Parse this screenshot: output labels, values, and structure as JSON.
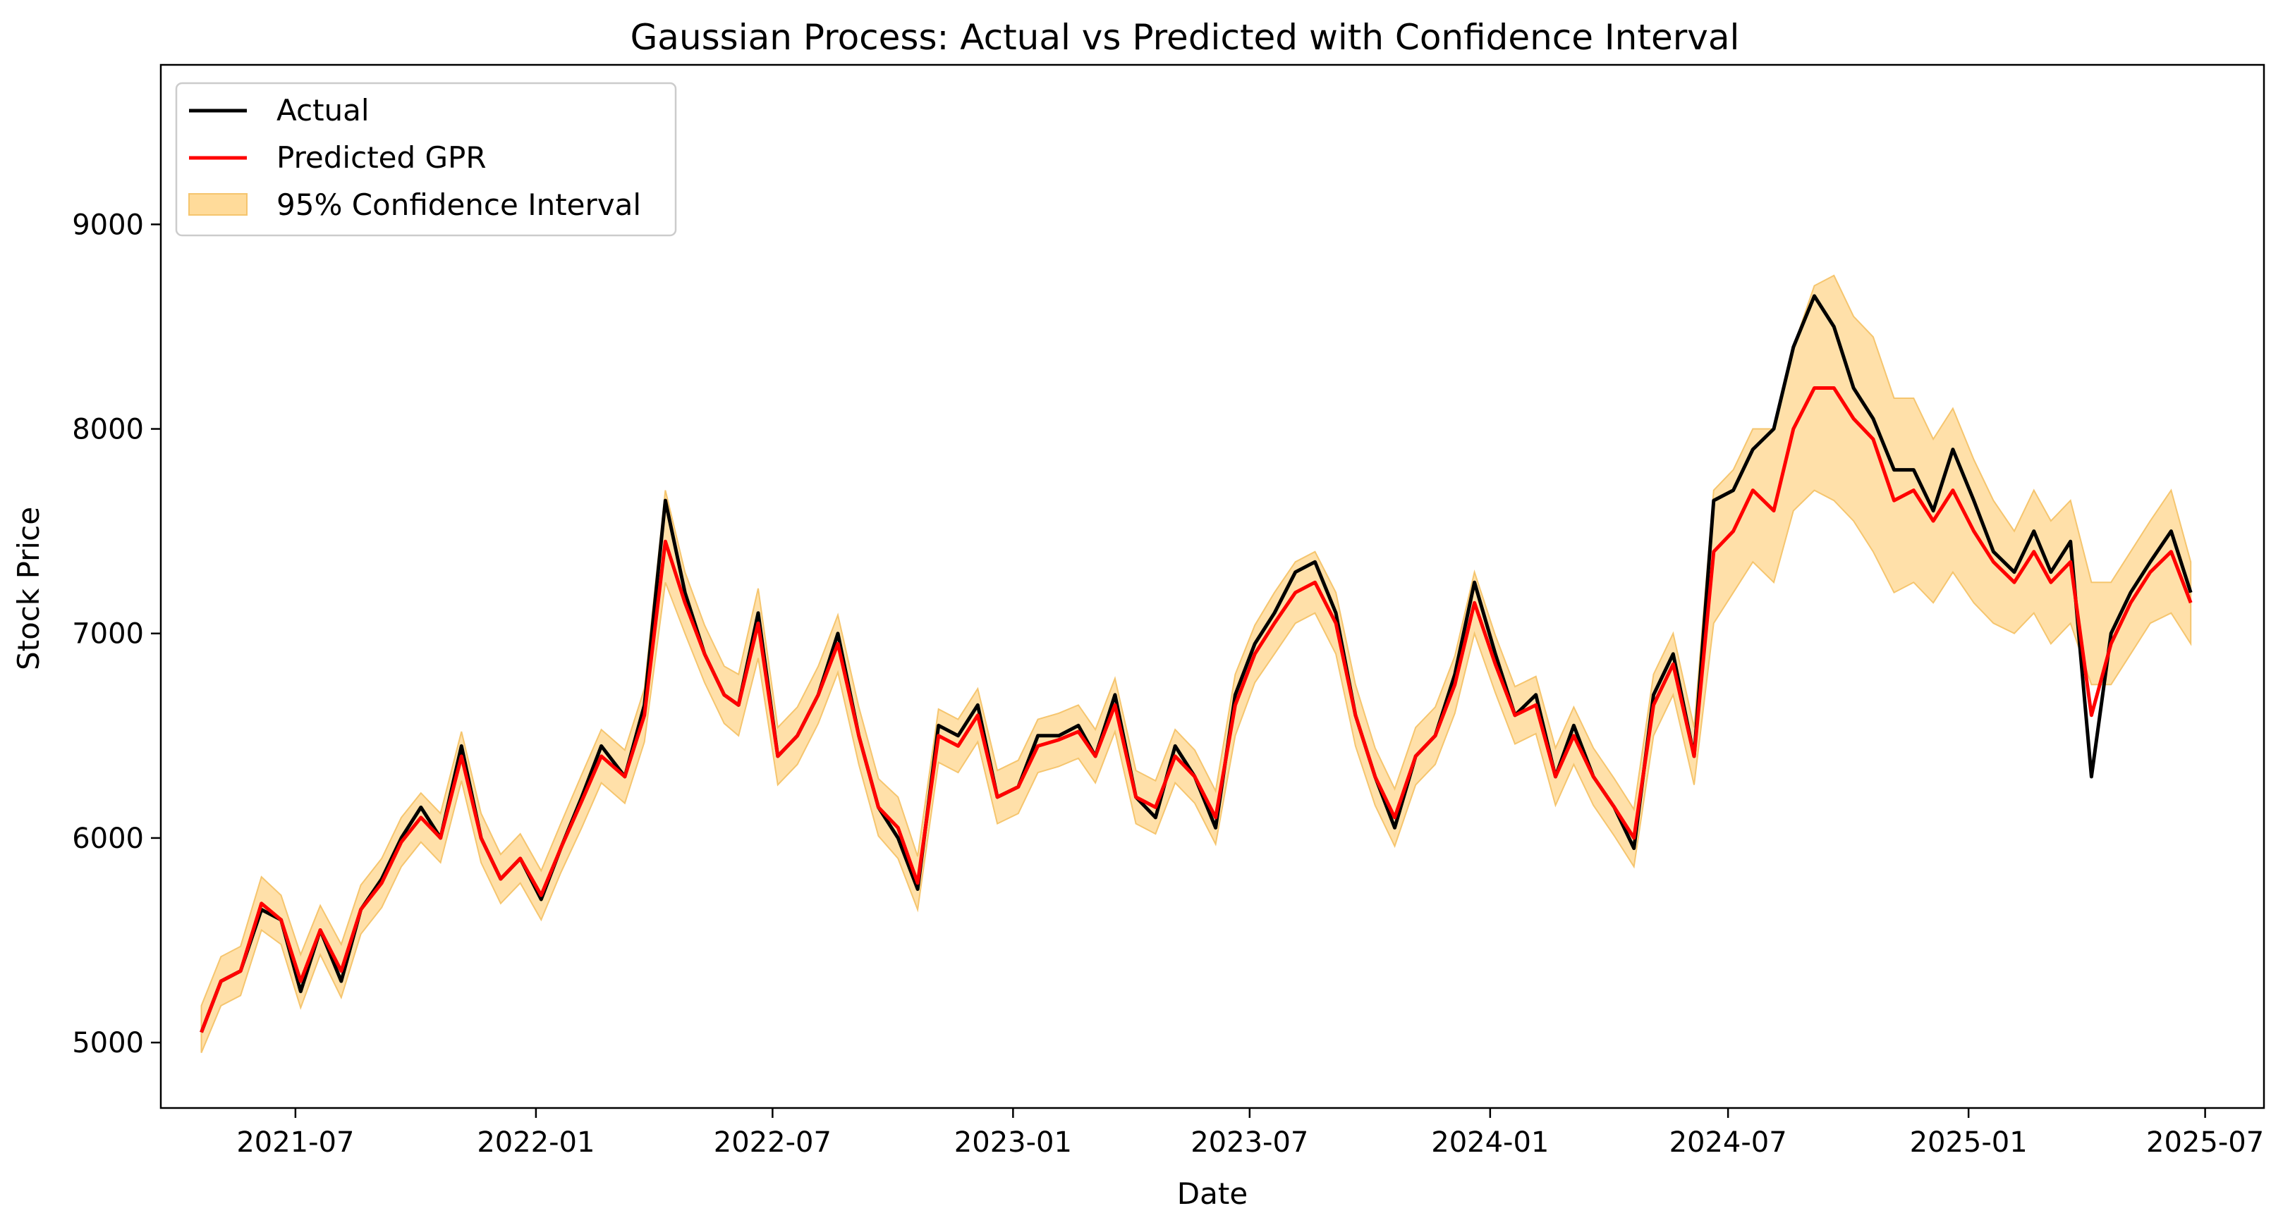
{
  "chart_data": {
    "type": "line",
    "title": "Gaussian Process: Actual vs Predicted with Confidence Interval",
    "xlabel": "Date",
    "ylabel": "Stock Price",
    "xlim": [
      "2021-03-20",
      "2025-08-15"
    ],
    "ylim": [
      4680,
      9780
    ],
    "x_ticks": [
      "2021-07",
      "2022-01",
      "2022-07",
      "2023-01",
      "2023-07",
      "2024-01",
      "2024-07",
      "2025-01",
      "2025-07"
    ],
    "y_ticks": [
      5000,
      6000,
      7000,
      8000,
      9000
    ],
    "grid": false,
    "legend_position": "top-left",
    "colors": {
      "actual": "#000000",
      "predicted": "#ff0000",
      "ci": "#ffdb9a",
      "ci_edge": "#f5c56e"
    },
    "x": [
      "2021-04-20",
      "2021-05-05",
      "2021-05-20",
      "2021-06-05",
      "2021-06-20",
      "2021-07-05",
      "2021-07-20",
      "2021-08-05",
      "2021-08-20",
      "2021-09-05",
      "2021-09-20",
      "2021-10-05",
      "2021-10-20",
      "2021-11-05",
      "2021-11-20",
      "2021-12-05",
      "2021-12-20",
      "2022-01-05",
      "2022-01-20",
      "2022-02-05",
      "2022-02-20",
      "2022-03-10",
      "2022-03-25",
      "2022-04-10",
      "2022-04-25",
      "2022-05-10",
      "2022-05-25",
      "2022-06-05",
      "2022-06-20",
      "2022-07-05",
      "2022-07-20",
      "2022-08-05",
      "2022-08-20",
      "2022-09-05",
      "2022-09-20",
      "2022-10-05",
      "2022-10-20",
      "2022-11-05",
      "2022-11-20",
      "2022-12-05",
      "2022-12-20",
      "2023-01-05",
      "2023-01-20",
      "2023-02-05",
      "2023-02-20",
      "2023-03-05",
      "2023-03-20",
      "2023-04-05",
      "2023-04-20",
      "2023-05-05",
      "2023-05-20",
      "2023-06-05",
      "2023-06-20",
      "2023-07-05",
      "2023-07-20",
      "2023-08-05",
      "2023-08-20",
      "2023-09-05",
      "2023-09-20",
      "2023-10-05",
      "2023-10-20",
      "2023-11-05",
      "2023-11-20",
      "2023-12-05",
      "2023-12-20",
      "2024-01-05",
      "2024-01-20",
      "2024-02-05",
      "2024-02-20",
      "2024-03-05",
      "2024-03-20",
      "2024-04-05",
      "2024-04-20",
      "2024-05-05",
      "2024-05-20",
      "2024-06-05",
      "2024-06-20",
      "2024-07-05",
      "2024-07-20",
      "2024-08-05",
      "2024-08-20",
      "2024-09-05",
      "2024-09-20",
      "2024-10-05",
      "2024-10-20",
      "2024-11-05",
      "2024-11-20",
      "2024-12-05",
      "2024-12-20",
      "2025-01-05",
      "2025-01-20",
      "2025-02-05",
      "2025-02-20",
      "2025-03-05",
      "2025-03-20",
      "2025-04-05",
      "2025-04-20",
      "2025-05-05",
      "2025-05-20",
      "2025-06-05",
      "2025-06-20"
    ],
    "series": [
      {
        "name": "Actual",
        "key": "actual",
        "values": [
          5050,
          5300,
          5350,
          5650,
          5600,
          5250,
          5550,
          5300,
          5650,
          5800,
          6000,
          6150,
          6000,
          6450,
          6000,
          5800,
          5900,
          5700,
          5950,
          6200,
          6450,
          6300,
          6650,
          7650,
          7200,
          6900,
          6700,
          6650,
          7100,
          6400,
          6500,
          6700,
          7000,
          6500,
          6150,
          6000,
          5750,
          6550,
          6500,
          6650,
          6200,
          6250,
          6500,
          6500,
          6550,
          6400,
          6700,
          6200,
          6100,
          6450,
          6300,
          6050,
          6700,
          6950,
          7100,
          7300,
          7350,
          7100,
          6600,
          6300,
          6050,
          6400,
          6500,
          6800,
          7250,
          6900,
          6600,
          6700,
          6300,
          6550,
          6300,
          6150,
          5950,
          6700,
          6900,
          6400,
          7650,
          7700,
          7900,
          8000,
          8400,
          8650,
          8500,
          8200,
          8050,
          7800,
          7800,
          7600,
          7900,
          7650,
          7400,
          7300,
          7500,
          7300,
          7450,
          6300,
          7000,
          7200,
          7350,
          7500,
          7200
        ]
      },
      {
        "name": "Predicted GPR",
        "key": "predicted",
        "values": [
          5050,
          5300,
          5350,
          5680,
          5600,
          5300,
          5550,
          5350,
          5650,
          5780,
          5980,
          6100,
          6000,
          6400,
          6000,
          5800,
          5900,
          5720,
          5950,
          6180,
          6400,
          6300,
          6600,
          7450,
          7150,
          6900,
          6700,
          6650,
          7050,
          6400,
          6500,
          6700,
          6950,
          6500,
          6150,
          6050,
          5780,
          6500,
          6450,
          6600,
          6200,
          6250,
          6450,
          6480,
          6520,
          6400,
          6650,
          6200,
          6150,
          6400,
          6300,
          6100,
          6650,
          6900,
          7050,
          7200,
          7250,
          7050,
          6600,
          6300,
          6100,
          6400,
          6500,
          6750,
          7150,
          6850,
          6600,
          6650,
          6300,
          6500,
          6300,
          6150,
          6000,
          6650,
          6850,
          6400,
          7400,
          7500,
          7700,
          7600,
          8000,
          8200,
          8200,
          8050,
          7950,
          7650,
          7700,
          7550,
          7700,
          7500,
          7350,
          7250,
          7400,
          7250,
          7350,
          6600,
          6950,
          7150,
          7300,
          7400,
          7150
        ]
      },
      {
        "name": "95% Confidence Interval",
        "key": "ci",
        "lower": [
          4950,
          5180,
          5230,
          5550,
          5480,
          5170,
          5430,
          5220,
          5530,
          5660,
          5860,
          5980,
          5880,
          6280,
          5880,
          5680,
          5780,
          5600,
          5830,
          6050,
          6270,
          6170,
          6470,
          7250,
          7000,
          6760,
          6560,
          6500,
          6880,
          6260,
          6360,
          6560,
          6810,
          6360,
          6010,
          5900,
          5650,
          6370,
          6320,
          6470,
          6070,
          6120,
          6320,
          6350,
          6390,
          6270,
          6520,
          6070,
          6020,
          6270,
          6170,
          5970,
          6500,
          6760,
          6900,
          7050,
          7100,
          6900,
          6450,
          6160,
          5960,
          6260,
          6360,
          6610,
          7000,
          6710,
          6460,
          6510,
          6160,
          6360,
          6160,
          6010,
          5860,
          6500,
          6700,
          6260,
          7050,
          7200,
          7350,
          7250,
          7600,
          7700,
          7650,
          7550,
          7400,
          7200,
          7250,
          7150,
          7300,
          7150,
          7050,
          7000,
          7100,
          6950,
          7050,
          6750,
          6750,
          6900,
          7050,
          7100,
          6950
        ],
        "upper": [
          5180,
          5420,
          5470,
          5810,
          5720,
          5430,
          5670,
          5480,
          5770,
          5900,
          6100,
          6220,
          6120,
          6520,
          6120,
          5920,
          6020,
          5840,
          6070,
          6310,
          6530,
          6430,
          6730,
          7700,
          7300,
          7040,
          6840,
          6800,
          7220,
          6540,
          6640,
          6840,
          7090,
          6640,
          6290,
          6200,
          5910,
          6630,
          6580,
          6730,
          6330,
          6380,
          6580,
          6610,
          6650,
          6530,
          6780,
          6330,
          6280,
          6530,
          6430,
          6230,
          6800,
          7040,
          7200,
          7350,
          7400,
          7200,
          6750,
          6440,
          6240,
          6540,
          6640,
          6890,
          7300,
          6990,
          6740,
          6790,
          6440,
          6640,
          6440,
          6290,
          6140,
          6800,
          7000,
          6540,
          7700,
          7800,
          8000,
          8000,
          8400,
          8700,
          8750,
          8550,
          8450,
          8150,
          8150,
          7950,
          8100,
          7850,
          7650,
          7500,
          7700,
          7550,
          7650,
          7250,
          7250,
          7400,
          7550,
          7700,
          7350
        ]
      }
    ]
  }
}
